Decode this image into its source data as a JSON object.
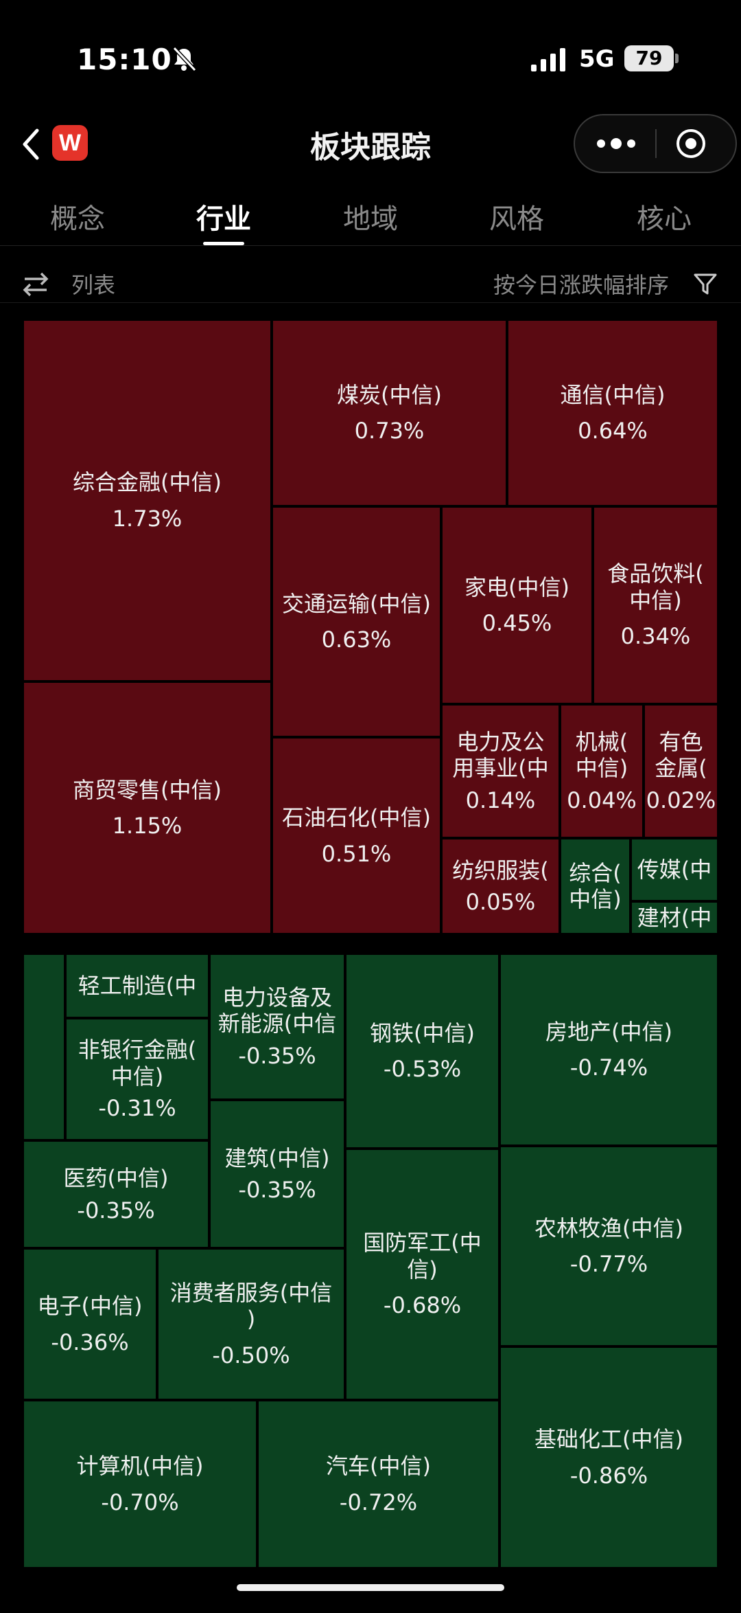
{
  "status": {
    "time": "15:10",
    "network": "5G",
    "battery": "79"
  },
  "nav": {
    "title": "板块跟踪",
    "logo_letter": "W"
  },
  "tabs": [
    "概念",
    "行业",
    "地域",
    "风格",
    "核心"
  ],
  "toolbar": {
    "list_label": "列表",
    "sort_label": "按今日涨跌幅排序"
  },
  "colors": {
    "up": "#5a0a12",
    "down": "#0b4220"
  },
  "sectors_up": [
    {
      "name": "综合金融(中信)",
      "pct": "1.73%"
    },
    {
      "name": "商贸零售(中信)",
      "pct": "1.15%"
    },
    {
      "name": "煤炭(中信)",
      "pct": "0.73%"
    },
    {
      "name": "通信(中信)",
      "pct": "0.64%"
    },
    {
      "name": "交通运输(中信)",
      "pct": "0.63%"
    },
    {
      "name": "家电(中信)",
      "pct": "0.45%"
    },
    {
      "name": "食品饮料(\n中信)",
      "pct": "0.34%"
    },
    {
      "name": "石油石化(中信)",
      "pct": "0.51%"
    },
    {
      "name": "电力及公\n用事业(中",
      "pct": "0.14%"
    },
    {
      "name": "机械(\n中信)",
      "pct": "0.04%"
    },
    {
      "name": "有色\n金属(",
      "pct": "0.02%"
    },
    {
      "name": "纺织服装(",
      "pct": "0.05%"
    },
    {
      "name": "综合(\n中信)",
      "pct": ""
    },
    {
      "name": "传媒(中",
      "pct": ""
    },
    {
      "name": "建材(中",
      "pct": ""
    }
  ],
  "sectors_down": [
    {
      "name": "",
      "pct": ""
    },
    {
      "name": "轻工制造(中",
      "pct": ""
    },
    {
      "name": "电力设备及\n新能源(中信",
      "pct": "-0.35%"
    },
    {
      "name": "钢铁(中信)",
      "pct": "-0.53%"
    },
    {
      "name": "房地产(中信)",
      "pct": "-0.74%"
    },
    {
      "name": "非银行金融(\n中信)",
      "pct": "-0.31%"
    },
    {
      "name": "医药(中信)",
      "pct": "-0.35%"
    },
    {
      "name": "建筑(中信)",
      "pct": "-0.35%"
    },
    {
      "name": "国防军工(中\n信)",
      "pct": "-0.68%"
    },
    {
      "name": "农林牧渔(中信)",
      "pct": "-0.77%"
    },
    {
      "name": "电子(中信)",
      "pct": "-0.36%"
    },
    {
      "name": "消费者服务(中信\n)",
      "pct": "-0.50%"
    },
    {
      "name": "基础化工(中信)",
      "pct": "-0.86%"
    },
    {
      "name": "计算机(中信)",
      "pct": "-0.70%"
    },
    {
      "name": "汽车(中信)",
      "pct": "-0.72%"
    }
  ]
}
